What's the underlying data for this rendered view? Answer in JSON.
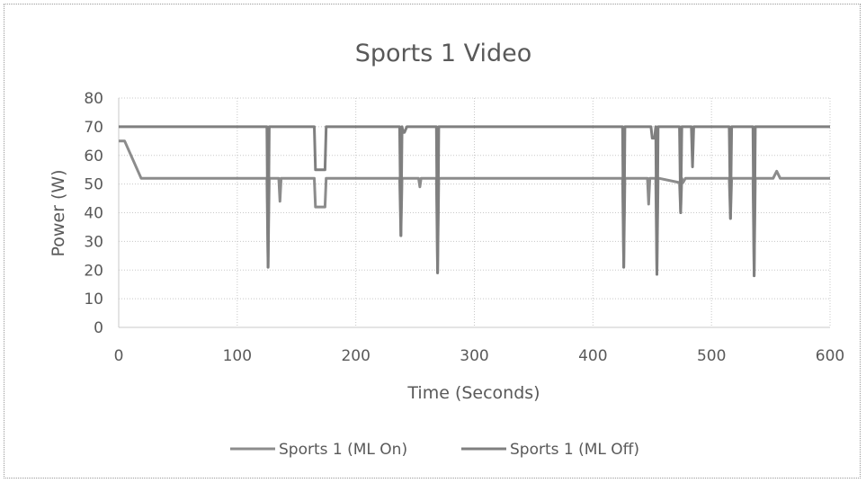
{
  "chart_data": {
    "type": "line",
    "title": "Sports 1 Video",
    "xlabel": "Time (Seconds)",
    "ylabel": "Power (W)",
    "xlim": [
      0,
      600
    ],
    "ylim": [
      0,
      80
    ],
    "xticks": [
      0,
      100,
      200,
      300,
      400,
      500,
      600
    ],
    "yticks": [
      0,
      10,
      20,
      30,
      40,
      50,
      60,
      70,
      80
    ],
    "grid": true,
    "legend_position": "bottom",
    "series": [
      {
        "name": "Sports 1 (ML On)",
        "color": "#8c8c8c",
        "x": [
          0,
          5,
          19,
          125,
          126,
          127,
          128,
          135,
          136,
          137,
          138,
          165,
          166,
          174,
          175,
          237,
          238,
          239,
          240,
          253,
          254,
          255,
          256,
          268,
          269,
          270,
          271,
          425,
          426,
          427,
          428,
          446,
          447,
          448,
          449,
          453,
          454,
          455,
          456,
          473,
          474,
          475,
          476,
          478,
          515,
          516,
          517,
          518,
          535,
          536,
          537,
          538,
          552,
          555,
          558,
          560,
          600
        ],
        "y": [
          65,
          65,
          52,
          52,
          21,
          52,
          52,
          52,
          44,
          52,
          52,
          52,
          42,
          42,
          52,
          52,
          32,
          52,
          52,
          52,
          49,
          52,
          52,
          52,
          19,
          52,
          52,
          52,
          21,
          52,
          52,
          52,
          43,
          52,
          52,
          52,
          18.5,
          52,
          52,
          50.5,
          40,
          52,
          50.5,
          52,
          52,
          38,
          52,
          52,
          52,
          18,
          52,
          52,
          52,
          54.5,
          52,
          52,
          52
        ]
      },
      {
        "name": "Sports 1 (ML Off)",
        "color": "#7f7f7f",
        "x": [
          0,
          125,
          126,
          127,
          128,
          165,
          166,
          174,
          175,
          237,
          238,
          239,
          240,
          241,
          243,
          244,
          268,
          269,
          270,
          271,
          425,
          426,
          427,
          428,
          449,
          450,
          452,
          453,
          454,
          455,
          456,
          473,
          474,
          475,
          476,
          483,
          484,
          485,
          486,
          515,
          516,
          517,
          518,
          535,
          536,
          537,
          538,
          600
        ],
        "y": [
          70,
          70,
          21,
          70,
          70,
          70,
          55,
          55,
          70,
          70,
          32,
          70,
          68,
          68,
          70,
          70,
          70,
          19,
          70,
          70,
          70,
          21,
          70,
          70,
          70,
          66,
          66,
          70,
          18.5,
          70,
          70,
          70,
          40,
          70,
          70,
          70,
          56,
          70,
          70,
          70,
          38,
          70,
          70,
          70,
          18,
          70,
          70,
          70
        ]
      }
    ]
  }
}
